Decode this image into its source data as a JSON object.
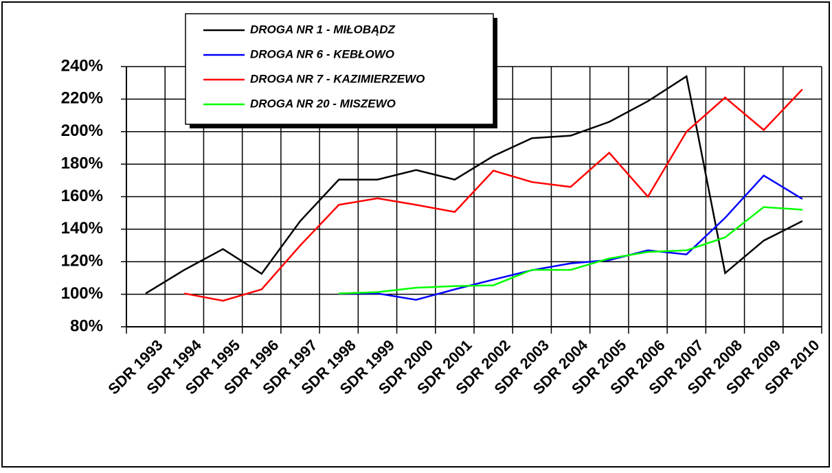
{
  "chart_data": {
    "type": "line",
    "categories": [
      "SDR 1993",
      "SDR 1994",
      "SDR 1995",
      "SDR 1996",
      "SDR 1997",
      "SDR 1998",
      "SDR 1999",
      "SDR 2000",
      "SDR 2001",
      "SDR 2002",
      "SDR 2003",
      "SDR 2004",
      "SDR 2005",
      "SDR 2006",
      "SDR 2007",
      "SDR 2008",
      "SDR 2009",
      "SDR 2010"
    ],
    "series": [
      {
        "name": "DROGA NR 1 - MIŁOBĄDZ",
        "color": "#000000",
        "values": [
          100.5,
          115,
          127.8,
          112.6,
          145,
          170.5,
          170.5,
          176.4,
          170.5,
          185,
          196,
          197.5,
          206,
          218.7,
          234,
          113,
          133,
          145
        ]
      },
      {
        "name": "DROGA NR 6 - KEBŁOWO",
        "color": "#0000ff",
        "values": [
          null,
          null,
          null,
          null,
          null,
          100.5,
          100.5,
          96.6,
          103,
          109,
          114.8,
          119,
          121,
          127,
          124.5,
          147,
          173,
          158.6
        ]
      },
      {
        "name": "DROGA NR 7 - KAZIMIERZEWO",
        "color": "#ff0000",
        "values": [
          null,
          100.5,
          96,
          103,
          130,
          155,
          159,
          155,
          150.6,
          176,
          169,
          166,
          187,
          160,
          200,
          221,
          201,
          226
        ]
      },
      {
        "name": "DROGA NR 20 - MISZEWO",
        "color": "#00ff00",
        "values": [
          null,
          null,
          null,
          null,
          null,
          100.5,
          101.3,
          104,
          105,
          105.5,
          115,
          115,
          122,
          126,
          127,
          135,
          153.6,
          152
        ]
      }
    ],
    "ylim": [
      80,
      240
    ],
    "yticks": [
      {
        "value": 80,
        "label": "80%"
      },
      {
        "value": 100,
        "label": "100%"
      },
      {
        "value": 120,
        "label": "120%"
      },
      {
        "value": 140,
        "label": "140%"
      },
      {
        "value": 160,
        "label": "160%"
      },
      {
        "value": 180,
        "label": "180%"
      },
      {
        "value": 200,
        "label": "200%"
      },
      {
        "value": 220,
        "label": "220%"
      },
      {
        "value": 240,
        "label": "240%"
      }
    ],
    "grid": true
  }
}
